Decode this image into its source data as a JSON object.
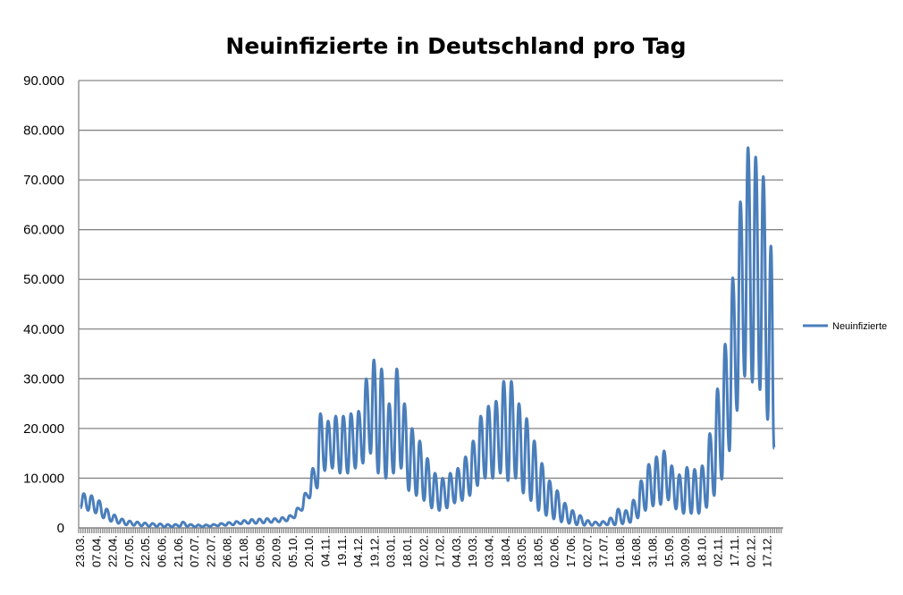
{
  "chart_data": {
    "type": "line",
    "title": "Neuinfizierte in Deutschland pro Tag",
    "xlabel": "",
    "ylabel": "",
    "ylim": [
      0,
      90000
    ],
    "yticks": [
      "0",
      "10.000",
      "20.000",
      "30.000",
      "40.000",
      "50.000",
      "60.000",
      "70.000",
      "80.000",
      "90.000"
    ],
    "grid": true,
    "legend_position": "right",
    "x_start_label": "23.03.",
    "x_tick_interval_days": 15,
    "xticks": [
      "23.03.",
      "07.04.",
      "22.04.",
      "07.05.",
      "22.05.",
      "06.06.",
      "21.06.",
      "07.07.",
      "22.07.",
      "06.08.",
      "21.08.",
      "05.09.",
      "20.09.",
      "05.10.",
      "20.10.",
      "04.11.",
      "19.11.",
      "04.12.",
      "19.12.",
      "03.01.",
      "18.01.",
      "02.02.",
      "17.02.",
      "04.03.",
      "19.03.",
      "03.04.",
      "18.04.",
      "03.05.",
      "18.05.",
      "02.06.",
      "17.06.",
      "02.07.",
      "17.07.",
      "01.08.",
      "16.08.",
      "31.08.",
      "15.09.",
      "30.09.",
      "18.10.",
      "02.11.",
      "17.11.",
      "02.12.",
      "17.12."
    ],
    "series": [
      {
        "name": "Neuinfizierte",
        "color": "#4a7ebb",
        "unit": "thousands",
        "note": "weekly minimum (day 7w) and weekly maximum (day 7w+3), days since 23.03.",
        "weekly_lows": [
          4.0,
          3.5,
          3.0,
          2.0,
          1.3,
          0.9,
          0.6,
          0.5,
          0.4,
          0.3,
          0.3,
          0.2,
          0.2,
          0.3,
          0.3,
          0.2,
          0.2,
          0.3,
          0.4,
          0.5,
          0.6,
          0.8,
          0.9,
          0.9,
          1.0,
          1.1,
          1.2,
          1.4,
          2.0,
          3.5,
          6.0,
          8.0,
          11.5,
          12.0,
          11.0,
          11.0,
          12.0,
          13.0,
          15.0,
          11.0,
          10.0,
          11.0,
          12.0,
          7.5,
          6.5,
          5.5,
          4.0,
          3.5,
          4.0,
          5.0,
          5.5,
          6.5,
          8.5,
          10.0,
          10.0,
          11.0,
          9.5,
          10.0,
          7.0,
          5.5,
          3.5,
          2.5,
          1.8,
          1.2,
          0.9,
          0.6,
          0.5,
          0.5,
          0.5,
          0.6,
          0.6,
          0.8,
          1.1,
          2.0,
          3.5,
          4.4,
          4.7,
          5.6,
          3.8,
          2.9,
          2.9,
          2.9,
          4.1,
          6.5,
          9.8,
          15.5,
          23.6,
          30.5,
          29.3,
          27.8,
          21.8
        ],
        "weekly_peaks": [
          6.9,
          6.5,
          5.5,
          3.8,
          2.6,
          1.8,
          1.4,
          1.2,
          1.0,
          0.9,
          0.8,
          0.7,
          0.7,
          1.2,
          0.7,
          0.6,
          0.6,
          0.7,
          0.9,
          1.1,
          1.3,
          1.5,
          1.7,
          1.8,
          1.9,
          1.9,
          2.1,
          2.5,
          4.0,
          7.0,
          12.0,
          23.0,
          21.5,
          22.5,
          22.5,
          23.0,
          23.5,
          30.0,
          33.8,
          32.0,
          25.0,
          32.0,
          25.0,
          20.0,
          17.5,
          14.0,
          11.0,
          10.0,
          11.0,
          12.0,
          14.3,
          17.5,
          22.5,
          24.5,
          25.5,
          29.5,
          29.5,
          25.0,
          22.0,
          17.5,
          13.0,
          9.5,
          7.5,
          5.0,
          3.5,
          2.5,
          1.5,
          1.2,
          1.3,
          2.0,
          3.8,
          3.5,
          5.6,
          9.5,
          12.8,
          14.3,
          15.5,
          12.5,
          10.7,
          12.2,
          11.8,
          12.5,
          19.0,
          28.0,
          37.0,
          50.3,
          65.6,
          76.5,
          74.6,
          70.7,
          56.7
        ],
        "last_point": {
          "day": 636,
          "value": 16.0
        }
      }
    ]
  }
}
